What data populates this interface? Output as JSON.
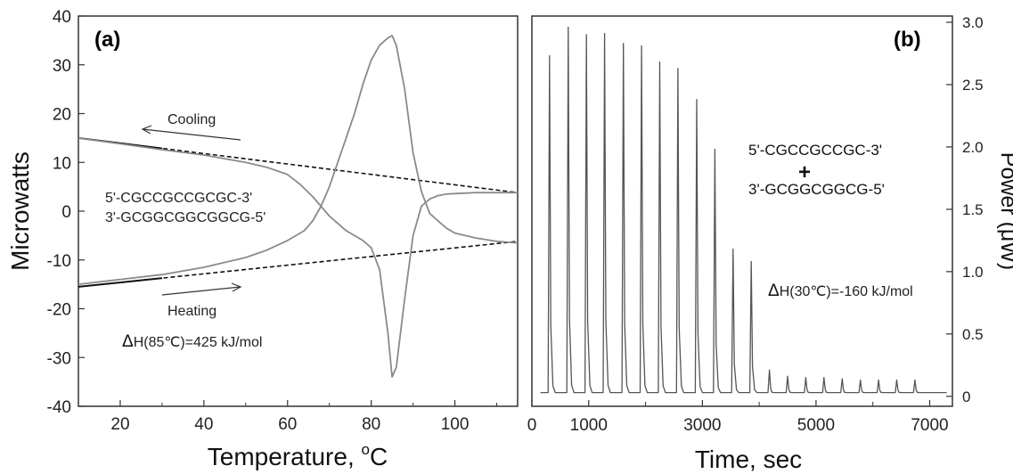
{
  "chart_data": [
    {
      "type": "line",
      "panel_label": "(a)",
      "xlabel": "Temperature, ",
      "xlabel_sup": "o",
      "xlabel_unit": "C",
      "ylabel": "Microwatts",
      "xlim": [
        10,
        115
      ],
      "ylim": [
        -40,
        40
      ],
      "x_ticks": [
        20,
        40,
        60,
        80,
        100
      ],
      "y_ticks": [
        -40,
        -30,
        -20,
        -10,
        0,
        10,
        20,
        30,
        40
      ],
      "series": [
        {
          "label": "Cooling",
          "x": [
            10,
            20,
            30,
            40,
            50,
            55,
            60,
            63,
            66,
            68,
            70,
            72,
            74,
            76,
            78,
            80,
            82,
            84,
            85,
            86,
            88,
            90,
            92,
            94,
            96,
            98,
            100,
            105,
            110,
            115
          ],
          "y": [
            15,
            13.8,
            12.6,
            11.5,
            10,
            9,
            7.5,
            5.5,
            3,
            1,
            -1,
            -2.5,
            -4,
            -5,
            -6,
            -7.5,
            -12,
            -25,
            -34,
            -32,
            -18,
            -5,
            1,
            2.5,
            3.2,
            3.5,
            3.6,
            3.8,
            3.8,
            3.8
          ]
        },
        {
          "label": "Heating",
          "x": [
            10,
            20,
            30,
            40,
            50,
            55,
            60,
            62,
            64,
            66,
            68,
            70,
            72,
            74,
            76,
            78,
            80,
            82,
            84,
            85,
            86,
            88,
            90,
            92,
            94,
            96,
            98,
            100,
            105,
            110,
            115
          ],
          "y": [
            -15,
            -14,
            -13,
            -11.5,
            -9.5,
            -8,
            -6,
            -5,
            -4,
            -2,
            1,
            5,
            10,
            15,
            20,
            26,
            31,
            34,
            35.5,
            36,
            34,
            25,
            12,
            4,
            -0.5,
            -2,
            -3.5,
            -4.5,
            -5.5,
            -6.2,
            -6.5
          ]
        }
      ],
      "baselines": [
        {
          "x": [
            10,
            115
          ],
          "y": [
            15,
            3.8
          ]
        },
        {
          "x": [
            10,
            115
          ],
          "y": [
            -15.5,
            -6.2
          ]
        }
      ],
      "annotations": {
        "cooling": "Cooling",
        "heating": "Heating",
        "seq1": "5'-CGCCGCCGCGC-3'",
        "seq2": "3'-GCGGCGGCGGCG-5'",
        "dh_sym": "Δ",
        "dh_text": "H(85℃)=425 kJ/mol"
      },
      "colors": {
        "curve": "#8a8a8a",
        "baseline": "#111111"
      }
    },
    {
      "type": "line",
      "panel_label": "(b)",
      "xlabel": "Time, sec",
      "ylabel": "Power (μW)",
      "xlim": [
        0,
        7400
      ],
      "ylim": [
        -0.08,
        3.05
      ],
      "x_ticks": [
        0,
        1000,
        3000,
        5000,
        7000
      ],
      "x_minor_ticks": [
        2000,
        4000,
        6000
      ],
      "y_ticks": [
        0,
        0.5,
        1.0,
        1.5,
        2.0,
        2.5,
        3.0
      ],
      "y_tick_labels": [
        "0",
        "0.5",
        "1.0",
        "1.5",
        "2.0",
        "2.5",
        "3.0"
      ],
      "baseline": 0.03,
      "peaks": {
        "t": [
          310,
          640,
          960,
          1280,
          1610,
          1930,
          2250,
          2570,
          2900,
          3220,
          3540,
          3860,
          4180,
          4500,
          4820,
          5140,
          5460,
          5780,
          6100,
          6420,
          6740
        ],
        "height": [
          2.7,
          2.93,
          2.87,
          2.88,
          2.8,
          2.78,
          2.65,
          2.6,
          2.35,
          1.95,
          1.15,
          1.05,
          0.18,
          0.13,
          0.12,
          0.12,
          0.11,
          0.1,
          0.1,
          0.1,
          0.1
        ]
      },
      "annotations": {
        "seq1": "5'-CGCCGCCGC-3'",
        "plus": "+",
        "seq2": "3'-GCGGCGGCG-5'",
        "dh_sym": "Δ",
        "dh_text": "H(30℃)=-160 kJ/mol"
      },
      "colors": {
        "curve": "#555555"
      }
    }
  ]
}
